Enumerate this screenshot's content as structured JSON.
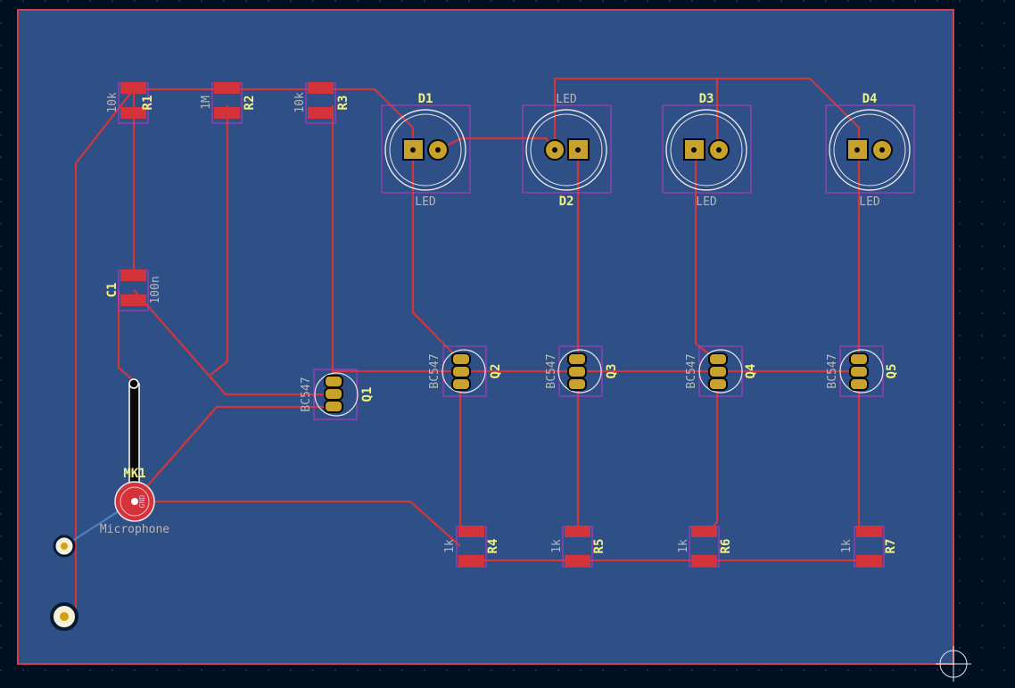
{
  "board": {
    "colors": {
      "background": "#001023",
      "board_fill": "#2e5086",
      "edge_cuts": "#d1404a",
      "copper_track": "#d2363c",
      "back_track": "#4d7fc4",
      "pad_smd": "#d4333b",
      "pad_tht": "#c8a22a",
      "silkscreen": "#f2f280",
      "value_text": "#b7b7b7",
      "courtyard": "#c433c4"
    }
  },
  "components": {
    "resistors": [
      {
        "ref": "R1",
        "value": "10k"
      },
      {
        "ref": "R2",
        "value": "1M"
      },
      {
        "ref": "R3",
        "value": "10k"
      },
      {
        "ref": "R4",
        "value": "1k"
      },
      {
        "ref": "R5",
        "value": "1k"
      },
      {
        "ref": "R6",
        "value": "1k"
      },
      {
        "ref": "R7",
        "value": "1k"
      }
    ],
    "capacitor": {
      "ref": "C1",
      "value": "100n"
    },
    "leds": [
      {
        "ref": "D1",
        "value": "LED"
      },
      {
        "ref": "D2",
        "value": "LED"
      },
      {
        "ref": "D3",
        "value": "LED"
      },
      {
        "ref": "D4",
        "value": "LED"
      }
    ],
    "transistors": [
      {
        "ref": "Q1",
        "value": "BC547"
      },
      {
        "ref": "Q2",
        "value": "BC547"
      },
      {
        "ref": "Q3",
        "value": "BC547"
      },
      {
        "ref": "Q4",
        "value": "BC547"
      },
      {
        "ref": "Q5",
        "value": "BC547"
      }
    ],
    "microphone": {
      "ref": "MK1",
      "value": "Microphone",
      "pad_label": "GND"
    }
  }
}
